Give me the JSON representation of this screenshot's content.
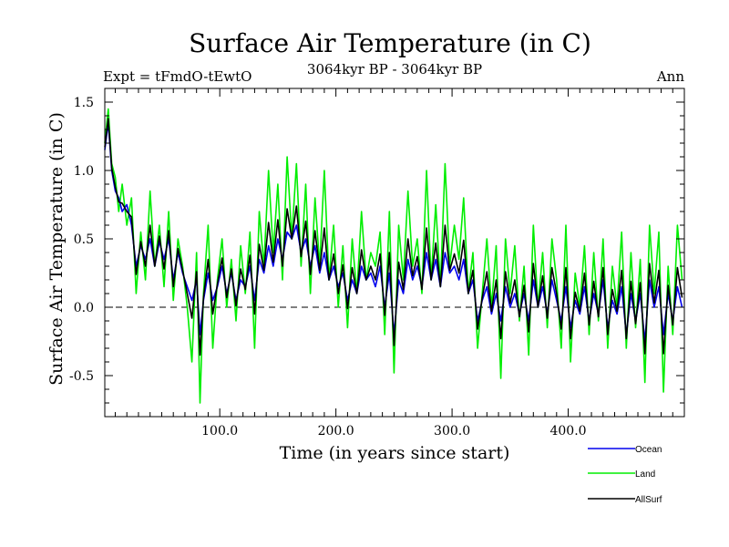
{
  "chart_data": {
    "type": "line",
    "title": "Surface Air Temperature (in C)",
    "subtitle_left": "Expt = tFmdO-tEwtO",
    "subtitle_center": "3064kyr BP - 3064kyr BP",
    "subtitle_right": "Ann",
    "xlabel": "Time (in years since start)",
    "ylabel": "Surface Air Temperature (in C)",
    "xlim": [
      1,
      500
    ],
    "ylim": [
      -0.8,
      1.6
    ],
    "x_ticks": [
      {
        "value": 100,
        "label": "100.0"
      },
      {
        "value": 200,
        "label": "200.0"
      },
      {
        "value": 300,
        "label": "300.0"
      },
      {
        "value": 400,
        "label": "400.0"
      }
    ],
    "y_ticks": [
      {
        "value": -0.5,
        "label": "-0.5"
      },
      {
        "value": 0.0,
        "label": "0.0"
      },
      {
        "value": 0.5,
        "label": "0.5"
      },
      {
        "value": 1.0,
        "label": "1.0"
      },
      {
        "value": 1.5,
        "label": "1.5"
      }
    ],
    "zero_line": 0.0,
    "series": [
      {
        "name": "Land",
        "color": "#00ee00",
        "x": [
          1,
          4,
          7,
          10,
          13,
          16,
          20,
          24,
          28,
          32,
          36,
          40,
          44,
          48,
          52,
          56,
          60,
          64,
          68,
          72,
          76,
          80,
          83,
          86,
          90,
          94,
          98,
          102,
          106,
          110,
          114,
          118,
          122,
          126,
          130,
          134,
          138,
          142,
          146,
          150,
          154,
          158,
          162,
          166,
          170,
          174,
          178,
          182,
          186,
          190,
          194,
          198,
          202,
          206,
          210,
          214,
          218,
          222,
          226,
          230,
          234,
          238,
          242,
          246,
          250,
          254,
          258,
          262,
          266,
          270,
          274,
          278,
          282,
          286,
          290,
          294,
          298,
          302,
          306,
          310,
          314,
          318,
          322,
          326,
          330,
          334,
          338,
          342,
          346,
          350,
          354,
          358,
          362,
          366,
          370,
          374,
          378,
          382,
          386,
          390,
          394,
          398,
          402,
          406,
          410,
          414,
          418,
          422,
          426,
          430,
          434,
          438,
          442,
          446,
          450,
          454,
          458,
          462,
          466,
          470,
          474,
          478,
          482,
          486,
          490,
          494,
          498
        ],
        "values": [
          1.2,
          1.45,
          1.05,
          0.95,
          0.7,
          0.9,
          0.6,
          0.8,
          0.1,
          0.55,
          0.2,
          0.85,
          0.3,
          0.6,
          0.15,
          0.7,
          0.05,
          0.5,
          0.3,
          0.0,
          -0.4,
          0.4,
          -0.7,
          0.1,
          0.6,
          -0.3,
          0.2,
          0.5,
          0.0,
          0.35,
          -0.1,
          0.45,
          0.1,
          0.55,
          -0.3,
          0.7,
          0.3,
          1.0,
          0.4,
          0.9,
          0.2,
          1.1,
          0.5,
          1.05,
          0.3,
          0.9,
          0.1,
          0.8,
          0.3,
          1.0,
          0.2,
          0.6,
          0.0,
          0.45,
          -0.15,
          0.5,
          0.1,
          0.7,
          0.2,
          0.4,
          0.3,
          0.55,
          -0.2,
          0.7,
          -0.48,
          0.6,
          0.2,
          0.85,
          0.3,
          0.5,
          0.1,
          1.0,
          0.2,
          0.75,
          0.15,
          1.05,
          0.3,
          0.6,
          0.35,
          0.8,
          0.1,
          0.4,
          -0.3,
          0.1,
          0.5,
          0.0,
          0.45,
          -0.52,
          0.5,
          0.1,
          0.45,
          -0.1,
          0.3,
          -0.35,
          0.6,
          0.0,
          0.4,
          -0.15,
          0.5,
          0.2,
          -0.3,
          0.6,
          -0.4,
          0.25,
          0.0,
          0.45,
          -0.2,
          0.4,
          -0.1,
          0.5,
          -0.3,
          0.3,
          0.0,
          0.55,
          -0.3,
          0.4,
          -0.15,
          0.35,
          -0.55,
          0.6,
          0.1,
          0.55,
          -0.62,
          0.3,
          -0.2,
          0.6,
          0.2
        ]
      },
      {
        "name": "Ocean",
        "color": "#0000ee",
        "x": [
          1,
          4,
          7,
          10,
          13,
          16,
          20,
          24,
          28,
          32,
          36,
          40,
          44,
          48,
          52,
          56,
          60,
          64,
          68,
          72,
          76,
          80,
          83,
          86,
          90,
          94,
          98,
          102,
          106,
          110,
          114,
          118,
          122,
          126,
          130,
          134,
          138,
          142,
          146,
          150,
          154,
          158,
          162,
          166,
          170,
          174,
          178,
          182,
          186,
          190,
          194,
          198,
          202,
          206,
          210,
          214,
          218,
          222,
          226,
          230,
          234,
          238,
          242,
          246,
          250,
          254,
          258,
          262,
          266,
          270,
          274,
          278,
          282,
          286,
          290,
          294,
          298,
          302,
          306,
          310,
          314,
          318,
          322,
          326,
          330,
          334,
          338,
          342,
          346,
          350,
          354,
          358,
          362,
          366,
          370,
          374,
          378,
          382,
          386,
          390,
          394,
          398,
          402,
          406,
          410,
          414,
          418,
          422,
          426,
          430,
          434,
          438,
          442,
          446,
          450,
          454,
          458,
          462,
          466,
          470,
          474,
          478,
          482,
          486,
          490,
          494,
          498
        ],
        "values": [
          1.15,
          1.35,
          1.0,
          0.85,
          0.8,
          0.7,
          0.75,
          0.6,
          0.3,
          0.45,
          0.35,
          0.5,
          0.3,
          0.48,
          0.35,
          0.5,
          0.2,
          0.4,
          0.25,
          0.15,
          0.05,
          0.2,
          -0.2,
          0.05,
          0.25,
          0.05,
          0.15,
          0.3,
          0.1,
          0.25,
          0.05,
          0.2,
          0.15,
          0.3,
          0.05,
          0.35,
          0.25,
          0.45,
          0.3,
          0.5,
          0.35,
          0.55,
          0.5,
          0.6,
          0.4,
          0.5,
          0.3,
          0.45,
          0.25,
          0.4,
          0.2,
          0.3,
          0.15,
          0.25,
          0.05,
          0.2,
          0.1,
          0.3,
          0.2,
          0.25,
          0.15,
          0.3,
          0.0,
          0.25,
          -0.2,
          0.2,
          0.1,
          0.35,
          0.2,
          0.3,
          0.15,
          0.4,
          0.2,
          0.35,
          0.15,
          0.4,
          0.25,
          0.3,
          0.2,
          0.35,
          0.1,
          0.2,
          -0.1,
          0.05,
          0.15,
          -0.05,
          0.1,
          -0.1,
          0.15,
          0.0,
          0.1,
          -0.05,
          0.1,
          -0.1,
          0.2,
          0.0,
          0.15,
          -0.05,
          0.2,
          0.05,
          -0.1,
          0.15,
          -0.15,
          0.05,
          -0.05,
          0.15,
          -0.1,
          0.1,
          -0.05,
          0.2,
          -0.15,
          0.05,
          -0.05,
          0.15,
          -0.2,
          0.1,
          -0.1,
          0.1,
          -0.25,
          0.2,
          0.0,
          0.15,
          -0.2,
          0.1,
          -0.1,
          0.15,
          0.0
        ]
      },
      {
        "name": "AllSurf",
        "color": "#000000",
        "x": [
          1,
          4,
          7,
          10,
          13,
          16,
          20,
          24,
          28,
          32,
          36,
          40,
          44,
          48,
          52,
          56,
          60,
          64,
          68,
          72,
          76,
          80,
          83,
          86,
          90,
          94,
          98,
          102,
          106,
          110,
          114,
          118,
          122,
          126,
          130,
          134,
          138,
          142,
          146,
          150,
          154,
          158,
          162,
          166,
          170,
          174,
          178,
          182,
          186,
          190,
          194,
          198,
          202,
          206,
          210,
          214,
          218,
          222,
          226,
          230,
          234,
          238,
          242,
          246,
          250,
          254,
          258,
          262,
          266,
          270,
          274,
          278,
          282,
          286,
          290,
          294,
          298,
          302,
          306,
          310,
          314,
          318,
          322,
          326,
          330,
          334,
          338,
          342,
          346,
          350,
          354,
          358,
          362,
          366,
          370,
          374,
          378,
          382,
          386,
          390,
          394,
          398,
          402,
          406,
          410,
          414,
          418,
          422,
          426,
          430,
          434,
          438,
          442,
          446,
          450,
          454,
          458,
          462,
          466,
          470,
          474,
          478,
          482,
          486,
          490,
          494,
          498
        ],
        "values": [
          1.17,
          1.38,
          1.02,
          0.88,
          0.77,
          0.76,
          0.7,
          0.66,
          0.24,
          0.48,
          0.3,
          0.6,
          0.3,
          0.52,
          0.28,
          0.56,
          0.15,
          0.43,
          0.27,
          0.1,
          -0.08,
          0.26,
          -0.35,
          0.07,
          0.35,
          -0.05,
          0.17,
          0.36,
          0.07,
          0.28,
          0.01,
          0.28,
          0.13,
          0.38,
          -0.05,
          0.46,
          0.27,
          0.62,
          0.33,
          0.64,
          0.3,
          0.72,
          0.5,
          0.74,
          0.37,
          0.63,
          0.24,
          0.56,
          0.27,
          0.58,
          0.2,
          0.39,
          0.1,
          0.31,
          -0.01,
          0.29,
          0.1,
          0.42,
          0.2,
          0.3,
          0.2,
          0.39,
          -0.06,
          0.4,
          -0.28,
          0.33,
          0.13,
          0.5,
          0.23,
          0.37,
          0.13,
          0.58,
          0.2,
          0.47,
          0.15,
          0.6,
          0.27,
          0.39,
          0.25,
          0.49,
          0.1,
          0.27,
          -0.16,
          0.07,
          0.26,
          -0.03,
          0.2,
          -0.23,
          0.26,
          0.03,
          0.2,
          -0.07,
          0.16,
          -0.18,
          0.32,
          0.0,
          0.23,
          -0.08,
          0.29,
          0.1,
          -0.16,
          0.29,
          -0.23,
          0.11,
          -0.03,
          0.25,
          -0.13,
          0.19,
          -0.07,
          0.29,
          -0.2,
          0.13,
          -0.03,
          0.27,
          -0.23,
          0.19,
          -0.12,
          0.18,
          -0.34,
          0.32,
          0.03,
          0.27,
          -0.34,
          0.16,
          -0.13,
          0.29,
          0.07
        ]
      }
    ],
    "legend": [
      {
        "label": "Ocean",
        "color": "#0000ee"
      },
      {
        "label": "Land",
        "color": "#00ee00"
      },
      {
        "label": "AllSurf",
        "color": "#000000"
      }
    ],
    "legend_position": "bottom-right"
  }
}
